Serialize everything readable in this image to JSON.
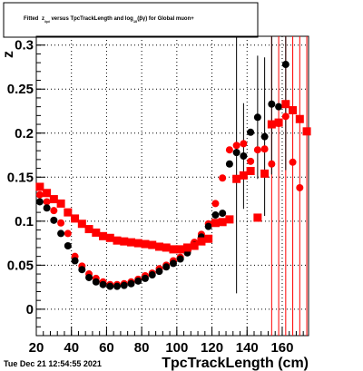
{
  "title": {
    "prefix": "Fitted ",
    "z_main": "z",
    "z_sub": "#pi",
    "middle": " versus TpcTrackLength and log",
    "log_sub": "10",
    "gamma": "(βγ)",
    "suffix": " for Global muon+"
  },
  "footer": {
    "timestamp": "Tue Dec 21 12:54:55 2021"
  },
  "chart_data": {
    "type": "scatter",
    "xlabel": "TpcTrackLength (cm)",
    "ylabel": "z",
    "xlim": [
      20,
      175
    ],
    "ylim": [
      -0.03,
      0.31
    ],
    "xticks": [
      20,
      40,
      60,
      80,
      100,
      120,
      140,
      160
    ],
    "yticks": [
      0,
      0.05,
      0.1,
      0.15,
      0.2,
      0.25,
      0.3
    ],
    "ytick_labels": [
      "0",
      "0.05",
      "0.1",
      "0.15",
      "0.2",
      "0.25",
      "0.3"
    ],
    "grid": true,
    "series": [
      {
        "color": "#000000",
        "marker": "circle",
        "points": [
          [
            22,
            0.122
          ],
          [
            26,
            0.115
          ],
          [
            30,
            0.101
          ],
          [
            34,
            0.086
          ],
          [
            38,
            0.072
          ],
          [
            42,
            0.055
          ],
          [
            46,
            0.045
          ],
          [
            50,
            0.036
          ],
          [
            54,
            0.031
          ],
          [
            58,
            0.028
          ],
          [
            62,
            0.026
          ],
          [
            66,
            0.026
          ],
          [
            70,
            0.027
          ],
          [
            74,
            0.029
          ],
          [
            78,
            0.032
          ],
          [
            82,
            0.035
          ],
          [
            86,
            0.039
          ],
          [
            90,
            0.043
          ],
          [
            94,
            0.048
          ],
          [
            98,
            0.052
          ],
          [
            102,
            0.057
          ],
          [
            106,
            0.064
          ],
          [
            110,
            0.073
          ],
          [
            114,
            0.082
          ],
          [
            118,
            0.094
          ],
          [
            122,
            0.107
          ],
          [
            126,
            0.109
          ],
          [
            130,
            0.165
          ],
          [
            134,
            0.178
          ],
          [
            138,
            0.174
          ],
          [
            142,
            0.201
          ],
          [
            146,
            0.218
          ],
          [
            150,
            0.196
          ],
          [
            154,
            0.233
          ],
          [
            158,
            0.23
          ],
          [
            162,
            0.278
          ],
          [
            166,
            0.226
          ]
        ],
        "errors": [
          [
            134,
            0.16
          ],
          [
            138,
            0.06
          ],
          [
            146,
            0.07
          ],
          [
            150,
            0.09
          ],
          [
            154,
            0.08
          ],
          [
            162,
            0.12
          ]
        ]
      },
      {
        "color": "#ff0000",
        "marker": "square",
        "points": [
          [
            22,
            0.139
          ],
          [
            26,
            0.132
          ],
          [
            30,
            0.125
          ],
          [
            34,
            0.12
          ],
          [
            38,
            0.11
          ],
          [
            42,
            0.103
          ],
          [
            46,
            0.097
          ],
          [
            50,
            0.091
          ],
          [
            54,
            0.087
          ],
          [
            58,
            0.083
          ],
          [
            62,
            0.081
          ],
          [
            66,
            0.078
          ],
          [
            70,
            0.077
          ],
          [
            74,
            0.076
          ],
          [
            78,
            0.075
          ],
          [
            82,
            0.074
          ],
          [
            86,
            0.073
          ],
          [
            90,
            0.071
          ],
          [
            94,
            0.07
          ],
          [
            98,
            0.068
          ],
          [
            102,
            0.068
          ],
          [
            106,
            0.07
          ],
          [
            110,
            0.072
          ],
          [
            114,
            0.077
          ],
          [
            118,
            0.08
          ],
          [
            122,
            0.098
          ],
          [
            126,
            0.099
          ],
          [
            130,
            0.102
          ],
          [
            134,
            0.148
          ],
          [
            138,
            0.152
          ],
          [
            142,
            0.157
          ],
          [
            146,
            0.104
          ],
          [
            150,
            0.154
          ],
          [
            154,
            0.21
          ],
          [
            158,
            0.212
          ],
          [
            162,
            0.233
          ],
          [
            166,
            0.226
          ],
          [
            170,
            0.216
          ],
          [
            174,
            0.202
          ]
        ],
        "extra_circles": [
          [
            22,
            0.13
          ],
          [
            26,
            0.122
          ],
          [
            30,
            0.112
          ],
          [
            34,
            0.098
          ],
          [
            38,
            0.086
          ],
          [
            42,
            0.06
          ],
          [
            46,
            0.049
          ],
          [
            50,
            0.04
          ],
          [
            54,
            0.035
          ],
          [
            58,
            0.031
          ],
          [
            62,
            0.028
          ],
          [
            66,
            0.028
          ],
          [
            70,
            0.029
          ],
          [
            74,
            0.031
          ],
          [
            78,
            0.034
          ],
          [
            82,
            0.038
          ],
          [
            86,
            0.041
          ],
          [
            90,
            0.046
          ],
          [
            94,
            0.05
          ],
          [
            98,
            0.055
          ],
          [
            102,
            0.059
          ],
          [
            106,
            0.066
          ],
          [
            110,
            0.076
          ],
          [
            114,
            0.085
          ],
          [
            118,
            0.097
          ],
          [
            122,
            0.12
          ],
          [
            126,
            0.149
          ],
          [
            130,
            0.181
          ],
          [
            134,
            0.186
          ],
          [
            138,
            0.188
          ],
          [
            142,
            0.168
          ],
          [
            146,
            0.181
          ],
          [
            150,
            0.182
          ],
          [
            154,
            0.165
          ],
          [
            158,
            0.211
          ],
          [
            162,
            0.219
          ],
          [
            166,
            0.167
          ],
          [
            170,
            0.138
          ]
        ],
        "error_lines_x": [
          154,
          158,
          162,
          166,
          170,
          174
        ]
      }
    ]
  }
}
